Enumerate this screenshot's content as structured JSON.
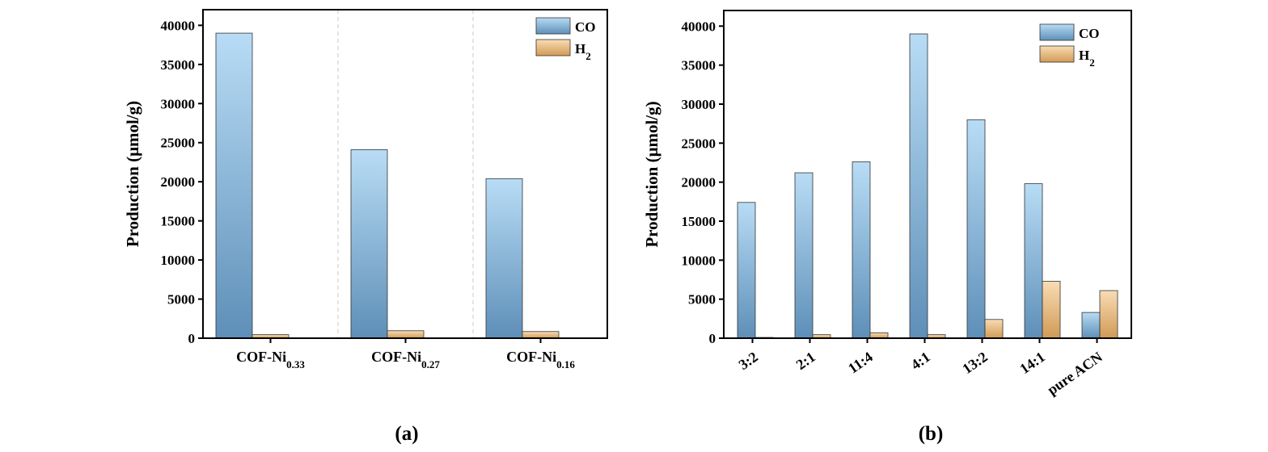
{
  "colors": {
    "co_top": "#b8dcf5",
    "co_bottom": "#5e8fb8",
    "h2_top": "#f9dcb4",
    "h2_bottom": "#d19a56",
    "axis": "#000000",
    "divider": "#c8c8c8"
  },
  "chart_data": [
    {
      "type": "bar",
      "panel_label": "(a)",
      "title": "",
      "xlabel": "",
      "ylabel": "Production (μmol/g)",
      "ylim": [
        0,
        42000
      ],
      "yticks": [
        0,
        5000,
        10000,
        15000,
        20000,
        25000,
        30000,
        35000,
        40000
      ],
      "categories": [
        {
          "base": "COF-Ni",
          "sub": "0.33"
        },
        {
          "base": "COF-Ni",
          "sub": "0.27"
        },
        {
          "base": "COF-Ni",
          "sub": "0.16"
        }
      ],
      "series": [
        {
          "name": "CO",
          "name_base": "CO",
          "name_sub": "",
          "values": [
            39000,
            24100,
            20400
          ]
        },
        {
          "name": "H2",
          "name_base": "H",
          "name_sub": "2",
          "values": [
            450,
            950,
            850
          ]
        }
      ],
      "legend": "top-right",
      "grid": false,
      "category_dividers": true,
      "xtick_rotation": 0
    },
    {
      "type": "bar",
      "panel_label": "(b)",
      "title": "",
      "xlabel": "",
      "ylabel": "Production (μmol/g)",
      "ylim": [
        0,
        42000
      ],
      "yticks": [
        0,
        5000,
        10000,
        15000,
        20000,
        25000,
        30000,
        35000,
        40000
      ],
      "categories": [
        {
          "base": "3:2",
          "sub": ""
        },
        {
          "base": "2:1",
          "sub": ""
        },
        {
          "base": "11:4",
          "sub": ""
        },
        {
          "base": "4:1",
          "sub": ""
        },
        {
          "base": "13:2",
          "sub": ""
        },
        {
          "base": "14:1",
          "sub": ""
        },
        {
          "base": "pure ACN",
          "sub": ""
        }
      ],
      "series": [
        {
          "name": "CO",
          "name_base": "CO",
          "name_sub": "",
          "values": [
            17400,
            21200,
            22600,
            39000,
            28000,
            19800,
            3300
          ]
        },
        {
          "name": "H2",
          "name_base": "H",
          "name_sub": "2",
          "values": [
            100,
            450,
            700,
            450,
            2400,
            7300,
            6100
          ]
        }
      ],
      "legend": "top-right",
      "grid": false,
      "category_dividers": false,
      "xtick_rotation": -35
    }
  ]
}
